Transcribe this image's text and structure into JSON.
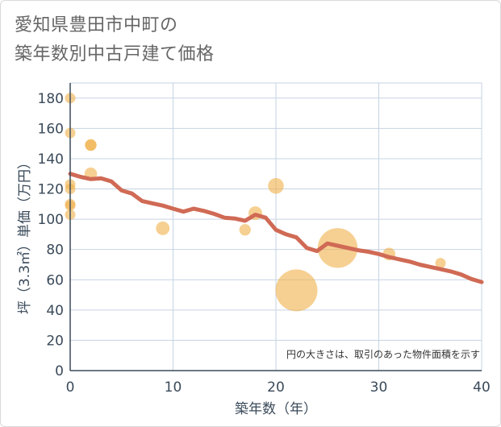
{
  "title": {
    "line1": "愛知県豊田市中町の",
    "line2": "築年数別中古戸建て価格"
  },
  "chart_data": {
    "type": "scatter",
    "title": "愛知県豊田市中町の築年数別中古戸建て価格",
    "xlabel": "築年数（年）",
    "ylabel": "坪（3.3㎡）単価（万円）",
    "xlim": [
      0,
      40
    ],
    "ylim": [
      0,
      190
    ],
    "x_ticks": [
      0,
      10,
      20,
      30,
      40
    ],
    "y_ticks": [
      0,
      20,
      40,
      60,
      80,
      100,
      120,
      140,
      160,
      180
    ],
    "grid": true,
    "note": "円の大きさは、取引のあった物件面積を示す",
    "points": [
      {
        "x": 0,
        "y": 180,
        "size": 1
      },
      {
        "x": 0,
        "y": 157,
        "size": 1
      },
      {
        "x": 0,
        "y": 123,
        "size": 1
      },
      {
        "x": 0,
        "y": 120,
        "size": 1
      },
      {
        "x": 0,
        "y": 110,
        "size": 1
      },
      {
        "x": 0,
        "y": 109,
        "size": 1
      },
      {
        "x": 0,
        "y": 103,
        "size": 1
      },
      {
        "x": 2,
        "y": 149,
        "size": 1.1
      },
      {
        "x": 2,
        "y": 149,
        "size": 1.1
      },
      {
        "x": 2,
        "y": 130,
        "size": 1.2
      },
      {
        "x": 9,
        "y": 94,
        "size": 1.3
      },
      {
        "x": 17,
        "y": 93,
        "size": 1.1
      },
      {
        "x": 18,
        "y": 104,
        "size": 1.3
      },
      {
        "x": 20,
        "y": 122,
        "size": 1.5
      },
      {
        "x": 22,
        "y": 53,
        "size": 4.0
      },
      {
        "x": 26,
        "y": 81,
        "size": 3.8
      },
      {
        "x": 31,
        "y": 77,
        "size": 1.2
      },
      {
        "x": 36,
        "y": 71,
        "size": 1.0
      }
    ],
    "trend_line": {
      "x": [
        0,
        1,
        2,
        3,
        4,
        5,
        6,
        7,
        8,
        9,
        10,
        11,
        12,
        13,
        14,
        15,
        16,
        17,
        18,
        19,
        20,
        21,
        22,
        23,
        24,
        25,
        26,
        27,
        28,
        29,
        30,
        31,
        32,
        33,
        34,
        35,
        36,
        37,
        38,
        39,
        40
      ],
      "y": [
        130,
        128,
        126.5,
        127,
        125,
        119,
        117,
        112,
        110.5,
        109,
        107,
        105,
        107,
        105.5,
        103.5,
        101,
        100.5,
        99,
        103,
        101,
        93,
        90,
        88,
        81,
        79,
        84,
        82.5,
        81,
        79.5,
        78.5,
        77,
        75,
        73.5,
        72,
        70,
        68.5,
        67,
        65.5,
        63.5,
        60.5,
        58.5
      ]
    },
    "colors": {
      "point": "#f0b04a",
      "trend": "#d06a55",
      "grid": "#c6d3e3",
      "axis": "#3a4a5a"
    }
  }
}
